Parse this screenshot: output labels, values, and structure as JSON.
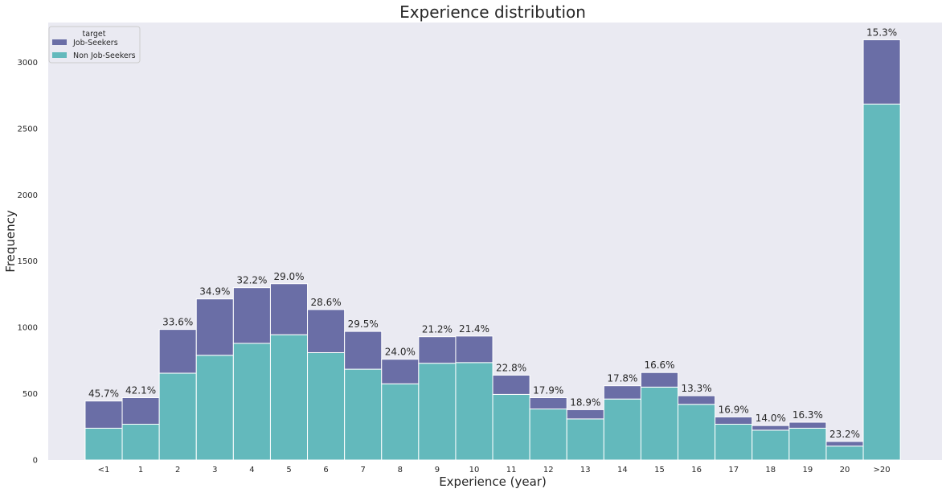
{
  "chart_data": {
    "type": "bar",
    "stacked": true,
    "title": "Experience distribution",
    "xlabel": "Experience (year)",
    "ylabel": "Frequency",
    "ylim": [
      0,
      3300
    ],
    "yticks": [
      0,
      500,
      1000,
      1500,
      2000,
      2500,
      3000
    ],
    "grid": false,
    "legend": {
      "title": "target",
      "placement": "top-left"
    },
    "categories": [
      "<1",
      "1",
      "2",
      "3",
      "4",
      "5",
      "6",
      "7",
      "8",
      "9",
      "10",
      "11",
      "12",
      "13",
      "14",
      "15",
      "16",
      "17",
      "18",
      "19",
      "20",
      ">20"
    ],
    "series": [
      {
        "name": "Non Job-Seekers",
        "values": [
          240,
          270,
          655,
          790,
          880,
          945,
          810,
          685,
          575,
          730,
          735,
          495,
          385,
          310,
          460,
          550,
          420,
          270,
          225,
          240,
          105,
          2685
        ]
      },
      {
        "name": "Job-Seekers",
        "values": [
          205,
          200,
          330,
          425,
          420,
          385,
          325,
          285,
          185,
          200,
          200,
          145,
          85,
          70,
          100,
          110,
          65,
          55,
          35,
          45,
          35,
          485
        ]
      }
    ],
    "annotations": [
      "45.7%",
      "42.1%",
      "33.6%",
      "34.9%",
      "32.2%",
      "29.0%",
      "28.6%",
      "29.5%",
      "24.0%",
      "21.2%",
      "21.4%",
      "22.8%",
      "17.9%",
      "18.9%",
      "17.8%",
      "16.6%",
      "13.3%",
      "16.9%",
      "14.0%",
      "16.3%",
      "23.2%",
      "15.3%"
    ],
    "colors": {
      "Job-Seekers": "#6a6ea6",
      "Non Job-Seekers": "#63b9bc",
      "plot_background": "#eaeaf2",
      "bar_edge": "#ffffff"
    }
  }
}
